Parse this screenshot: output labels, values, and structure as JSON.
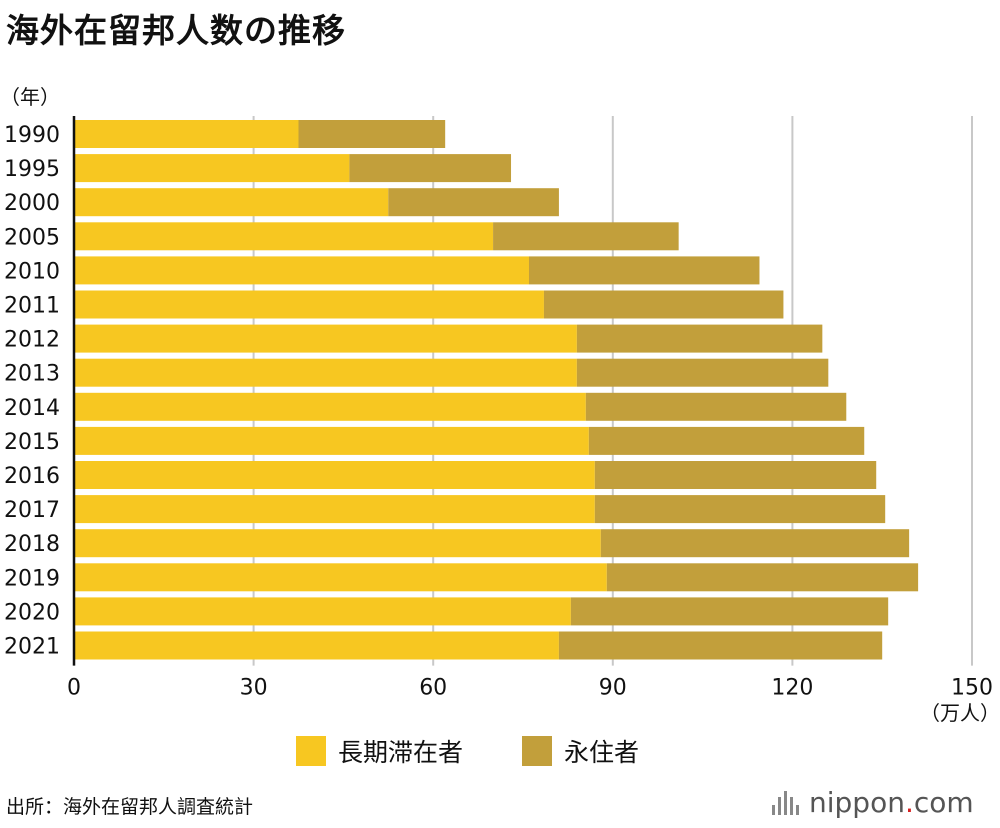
{
  "title": "海外在留邦人数の推移",
  "source": "出所：海外在留邦人調査統計",
  "logo": {
    "name": "nippon",
    "dot": ".",
    "tld": "com"
  },
  "chart_data": {
    "type": "bar",
    "orientation": "horizontal",
    "stacked": true,
    "y_unit_label": "（年）",
    "x_unit_label": "（万人）",
    "xlim": [
      0,
      150
    ],
    "xticks": [
      0,
      30,
      60,
      90,
      120,
      150
    ],
    "grid": true,
    "legend_position": "bottom-center",
    "categories": [
      "1990",
      "1995",
      "2000",
      "2005",
      "2010",
      "2011",
      "2012",
      "2013",
      "2014",
      "2015",
      "2016",
      "2017",
      "2018",
      "2019",
      "2020",
      "2021"
    ],
    "series": [
      {
        "name": "長期滞在者",
        "color": "#f7c721",
        "values": [
          37.5,
          46,
          52.5,
          70,
          76,
          78.5,
          84,
          84,
          85.5,
          86,
          87,
          87,
          88,
          89,
          83,
          81
        ]
      },
      {
        "name": "永住者",
        "color": "#c29f3b",
        "values": [
          24.5,
          27,
          28.5,
          31,
          38.5,
          40,
          41,
          42,
          43.5,
          46,
          47,
          48.5,
          51.5,
          52,
          53,
          54
        ]
      }
    ]
  }
}
